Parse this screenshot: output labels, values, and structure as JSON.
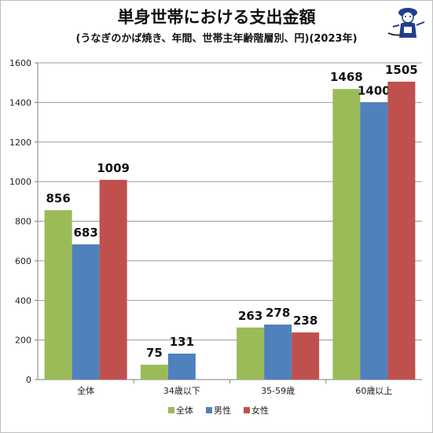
{
  "title": "単身世帯における支出金額",
  "subtitle": "(うなぎのかば焼き、年間、世帯主年齢階層別、円)(2023年)",
  "colors": {
    "total": "#9bbb59",
    "male": "#4f81bd",
    "female": "#c0504d"
  },
  "chart_data": {
    "type": "bar",
    "title": "単身世帯における支出金額",
    "subtitle": "(うなぎのかば焼き、年間、世帯主年齢階層別、円)(2023年)",
    "categories": [
      "全体",
      "34歳以下",
      "35-59歳",
      "60歳以上"
    ],
    "series": [
      {
        "name": "全体",
        "values": [
          856,
          75,
          263,
          1468
        ]
      },
      {
        "name": "男性",
        "values": [
          683,
          131,
          278,
          1400
        ]
      },
      {
        "name": "女性",
        "values": [
          1009,
          null,
          238,
          1505
        ]
      }
    ],
    "ylim": [
      0,
      1600
    ],
    "yticks": [
      0,
      200,
      400,
      600,
      800,
      1000,
      1200,
      1400,
      1600
    ],
    "grid": true,
    "legend_position": "bottom"
  }
}
